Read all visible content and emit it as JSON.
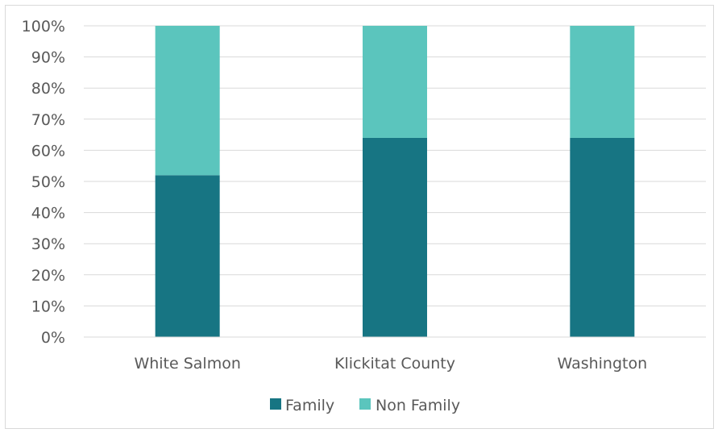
{
  "chart_data": {
    "type": "bar",
    "stacked": true,
    "categories": [
      "White Salmon",
      "Klickitat County",
      "Washington"
    ],
    "series": [
      {
        "name": "Family",
        "values": [
          52,
          64,
          64
        ],
        "color": "#177583"
      },
      {
        "name": "Non Family",
        "values": [
          48,
          36,
          36
        ],
        "color": "#5bc5bd"
      }
    ],
    "y_ticks": [
      "0%",
      "10%",
      "20%",
      "30%",
      "40%",
      "50%",
      "60%",
      "70%",
      "80%",
      "90%",
      "100%"
    ],
    "ylim": [
      0,
      100
    ],
    "grid": true,
    "legend_position": "bottom"
  }
}
